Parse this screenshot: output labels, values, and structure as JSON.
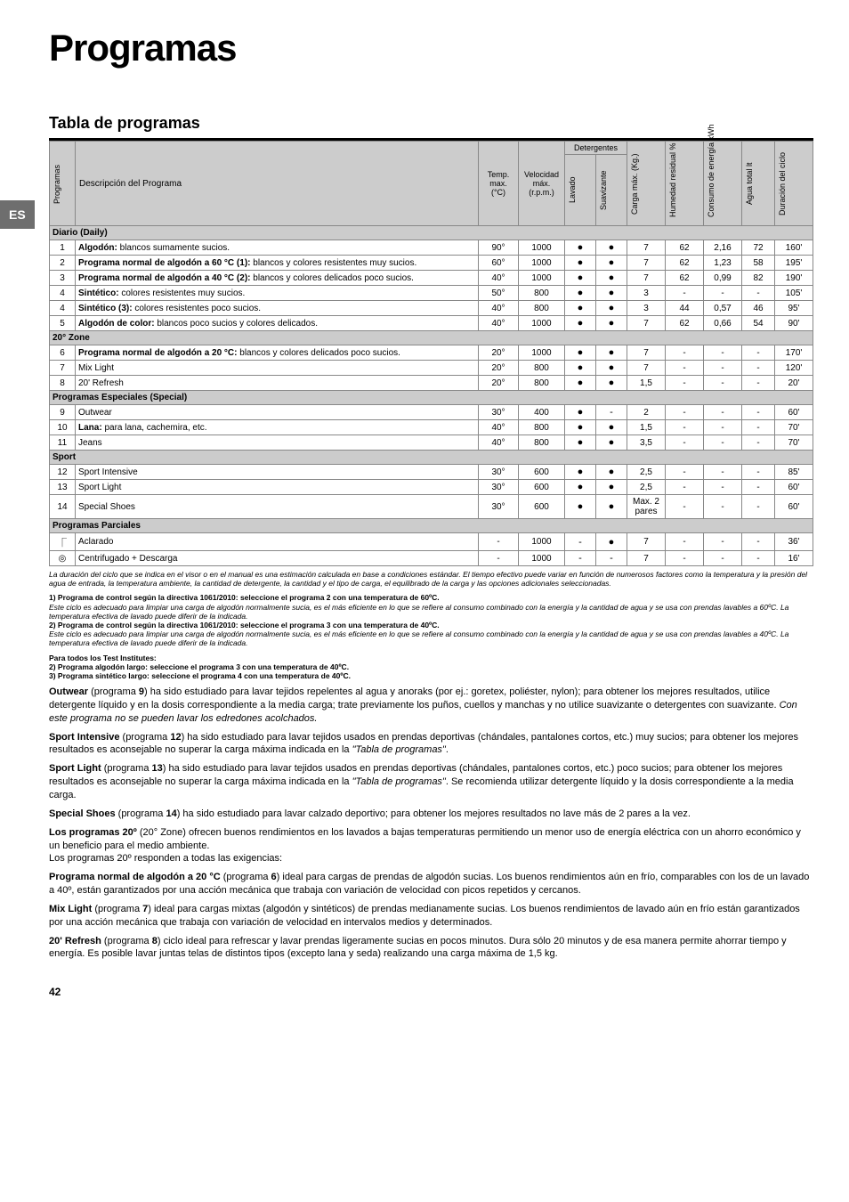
{
  "es_label": "ES",
  "title": "Programas",
  "subtitle": "Tabla de programas",
  "headers": {
    "programas": "Programas",
    "descripcion": "Descripción del Programa",
    "temp": "Temp. max. (°C)",
    "velocidad": "Velocidad máx. (r.p.m.)",
    "detergentes": "Detergentes",
    "lavado": "Lavado",
    "suavizante": "Suavizante",
    "carga": "Carga máx. (Kg.)",
    "humedad": "Humedad residual %",
    "consumo": "Consumo de energía kWh",
    "agua": "Agua total lt",
    "duracion": "Duración del ciclo"
  },
  "sections": [
    {
      "title": "Diario (Daily)",
      "rows": [
        {
          "n": "1",
          "d": "<b>Algodón:</b> blancos sumamente sucios.",
          "t": "90°",
          "v": "1000",
          "l": "●",
          "s": "●",
          "c": "7",
          "h": "62",
          "e": "2,16",
          "a": "72",
          "du": "160'"
        },
        {
          "n": "2",
          "d": "<b>Programa normal de algodón a 60 °C (1):</b> blancos y colores resistentes muy sucios.",
          "t": "60°",
          "v": "1000",
          "l": "●",
          "s": "●",
          "c": "7",
          "h": "62",
          "e": "1,23",
          "a": "58",
          "du": "195'"
        },
        {
          "n": "3",
          "d": "<b>Programa normal de algodón a 40 °C (2):</b> blancos y colores delicados poco sucios.",
          "t": "40°",
          "v": "1000",
          "l": "●",
          "s": "●",
          "c": "7",
          "h": "62",
          "e": "0,99",
          "a": "82",
          "du": "190'"
        },
        {
          "n": "4",
          "d": "<b>Sintético:</b> colores resistentes muy sucios.",
          "t": "50°",
          "v": "800",
          "l": "●",
          "s": "●",
          "c": "3",
          "h": "-",
          "e": "-",
          "a": "-",
          "du": "105'"
        },
        {
          "n": "4",
          "d": "<b>Sintético (3):</b> colores resistentes poco sucios.",
          "t": "40°",
          "v": "800",
          "l": "●",
          "s": "●",
          "c": "3",
          "h": "44",
          "e": "0,57",
          "a": "46",
          "du": "95'"
        },
        {
          "n": "5",
          "d": "<b>Algodón de color:</b> blancos poco sucios y colores delicados.",
          "t": "40°",
          "v": "1000",
          "l": "●",
          "s": "●",
          "c": "7",
          "h": "62",
          "e": "0,66",
          "a": "54",
          "du": "90'"
        }
      ]
    },
    {
      "title": "20° Zone",
      "rows": [
        {
          "n": "6",
          "d": "<b>Programa normal de algodón a 20 °C:</b> blancos y colores delicados poco sucios.",
          "t": "20°",
          "v": "1000",
          "l": "●",
          "s": "●",
          "c": "7",
          "h": "-",
          "e": "-",
          "a": "-",
          "du": "170'"
        },
        {
          "n": "7",
          "d": "Mix Light",
          "t": "20°",
          "v": "800",
          "l": "●",
          "s": "●",
          "c": "7",
          "h": "-",
          "e": "-",
          "a": "-",
          "du": "120'"
        },
        {
          "n": "8",
          "d": "20' Refresh",
          "t": "20°",
          "v": "800",
          "l": "●",
          "s": "●",
          "c": "1,5",
          "h": "-",
          "e": "-",
          "a": "-",
          "du": "20'"
        }
      ]
    },
    {
      "title": "Programas Especiales (Special)",
      "rows": [
        {
          "n": "9",
          "d": "Outwear",
          "t": "30°",
          "v": "400",
          "l": "●",
          "s": "-",
          "c": "2",
          "h": "-",
          "e": "-",
          "a": "-",
          "du": "60'"
        },
        {
          "n": "10",
          "d": "<b>Lana:</b> para lana, cachemira, etc.",
          "t": "40°",
          "v": "800",
          "l": "●",
          "s": "●",
          "c": "1,5",
          "h": "-",
          "e": "-",
          "a": "-",
          "du": "70'"
        },
        {
          "n": "11",
          "d": "Jeans",
          "t": "40°",
          "v": "800",
          "l": "●",
          "s": "●",
          "c": "3,5",
          "h": "-",
          "e": "-",
          "a": "-",
          "du": "70'"
        }
      ]
    },
    {
      "title": "Sport",
      "rows": [
        {
          "n": "12",
          "d": "Sport Intensive",
          "t": "30°",
          "v": "600",
          "l": "●",
          "s": "●",
          "c": "2,5",
          "h": "-",
          "e": "-",
          "a": "-",
          "du": "85'"
        },
        {
          "n": "13",
          "d": "Sport Light",
          "t": "30°",
          "v": "600",
          "l": "●",
          "s": "●",
          "c": "2,5",
          "h": "-",
          "e": "-",
          "a": "-",
          "du": "60'"
        },
        {
          "n": "14",
          "d": "Special Shoes",
          "t": "30°",
          "v": "600",
          "l": "●",
          "s": "●",
          "c": "Max. 2 pares",
          "h": "-",
          "e": "-",
          "a": "-",
          "du": "60'"
        }
      ]
    },
    {
      "title": "Programas Parciales",
      "rows": [
        {
          "n": "⎾",
          "d": "Aclarado",
          "t": "-",
          "v": "1000",
          "l": "-",
          "s": "●",
          "c": "7",
          "h": "-",
          "e": "-",
          "a": "-",
          "du": "36'"
        },
        {
          "n": "◎",
          "d": "Centrifugado + Descarga",
          "t": "-",
          "v": "1000",
          "l": "-",
          "s": "-",
          "c": "7",
          "h": "-",
          "e": "-",
          "a": "-",
          "du": "16'"
        }
      ]
    }
  ],
  "footnote_italic": "La duración del ciclo que se indica en el visor o en el manual es una estimación calculada en base a condiciones estándar. El tiempo efectivo puede variar en función de numerosos factores como la temperatura y la presión del agua de entrada, la temperatura ambiente, la cantidad de detergente, la cantidad y el tipo de carga, el equilibrado de la carga y las opciones adicionales seleccionadas.",
  "notes1": "<b>1) Programa de control según la directiva 1061/2010: seleccione el programa 2 con una temperatura de 60ºC.</b><br><i>Este ciclo es adecuado para limpiar una carga de algodón normalmente sucia, es el más eficiente en lo que se refiere al consumo combinado con la energía y la cantidad de agua y se usa con prendas lavables a 60ºC. La temperatura efectiva de lavado puede diferir de la indicada.</i><br><b>2) Programa de control según la directiva 1061/2010: seleccione el programa 3 con una temperatura de 40ºC.</b><br><i>Este ciclo es adecuado para limpiar una carga de algodón normalmente sucia, es el más eficiente en lo que se refiere al consumo combinado con la energía y la cantidad de agua y se usa con prendas lavables a 40ºC. La temperatura efectiva de lavado puede diferir de la indicada.</i>",
  "notes2": "<b>Para todos los Test Institutes:<br>2) Programa algodón largo: seleccione el programa 3 con una temperatura de 40ºC.<br>3) Programa sintético largo: seleccione el programa 4 con una temperatura de 40ºC.</b>",
  "paras": [
    "<b>Outwear</b> (programa <b>9</b>) ha sido estudiado para lavar tejidos repelentes al agua y anoraks (por ej.: goretex, poliéster, nylon); para obtener los mejores resultados, utilice detergente líquido y en la dosis correspondiente a la media carga; trate previamente los puños, cuellos y manchas y no utilice suavizante o detergentes con suavizante. <i>Con este programa no se pueden lavar los edredones acolchados.</i>",
    "<b>Sport Intensive</b> (programa <b>12</b>) ha sido estudiado para lavar tejidos usados en prendas deportivas (chándales, pantalones cortos, etc.) muy sucios; para obtener los mejores resultados es aconsejable no superar la carga máxima indicada en la <i>\"Tabla de programas\"</i>.",
    "<b>Sport Light</b> (programa <b>13</b>) ha sido estudiado para lavar tejidos usados en prendas deportivas (chándales, pantalones cortos, etc.) poco sucios; para obtener los mejores resultados es aconsejable no superar la carga máxima indicada en la <i>\"Tabla de programas\"</i>. Se recomienda utilizar detergente líquido y la dosis correspondiente a la media carga.",
    "<b>Special Shoes</b> (programa <b>14</b>) ha sido estudiado para lavar calzado deportivo; para obtener los mejores resultados no lave más de 2 pares a la vez.",
    "<b>Los programas 20º</b> (20° Zone) ofrecen buenos rendimientos en los lavados a bajas temperaturas permitiendo un menor uso de energía eléctrica con un ahorro económico y un beneficio para el medio ambiente.<br>Los programas 20º responden a todas las exigencias:",
    "<b>Programa normal de algodón a 20 °C</b> (programa <b>6</b>) ideal para cargas de prendas de algodón sucias. Los buenos rendimientos aún en frío, comparables con los de un lavado a 40º, están garantizados por una acción mecánica que trabaja con variación de velocidad con picos repetidos y cercanos.",
    "<b>Mix Light</b> (programa <b>7</b>) ideal para cargas mixtas (algodón y sintéticos) de prendas medianamente sucias. Los buenos rendimientos de lavado aún en frío están garantizados por una acción mecánica que trabaja con variación de velocidad en intervalos medios y determinados.",
    "<b>20' Refresh</b> (programa <b>8</b>) ciclo ideal para refrescar y lavar prendas ligeramente sucias en pocos minutos. Dura sólo 20 minutos y de esa manera permite ahorrar tiempo y energía. Es posible lavar juntas telas de distintos tipos (excepto lana y seda) realizando una carga máxima de 1,5 kg."
  ],
  "page_number": "42",
  "colwidths": [
    "22",
    "",
    "38",
    "45",
    "28",
    "28",
    "36",
    "36",
    "36",
    "30",
    "36"
  ]
}
